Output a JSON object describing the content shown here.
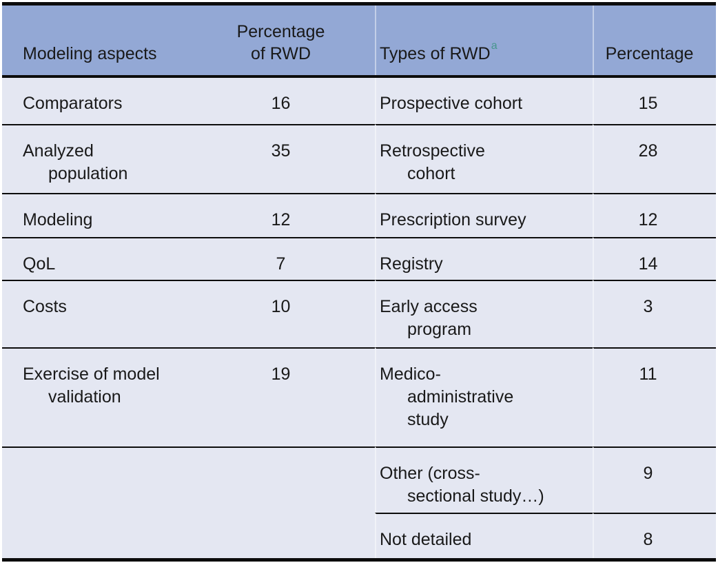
{
  "table": {
    "kind": "data-table",
    "header": {
      "col1": "Modeling aspects",
      "col2": "Percentage\nof RWD",
      "col3": "Types of RWD",
      "col3_sup": "a",
      "col4": "Percentage"
    },
    "rows": [
      {
        "aspect": "Comparators",
        "aspect_pct": "16",
        "rwd_type": "Prospective cohort",
        "type_pct": "15"
      },
      {
        "aspect": "Analyzed\npopulation",
        "aspect_pct": "35",
        "rwd_type": "Retrospective\ncohort",
        "type_pct": "28"
      },
      {
        "aspect": "Modeling",
        "aspect_pct": "12",
        "rwd_type": "Prescription survey",
        "type_pct": "12"
      },
      {
        "aspect": "QoL",
        "aspect_pct": "7",
        "rwd_type": "Registry",
        "type_pct": "14"
      },
      {
        "aspect": "Costs",
        "aspect_pct": "10",
        "rwd_type": "Early access\nprogram",
        "type_pct": "3"
      },
      {
        "aspect": "Exercise of model\nvalidation",
        "aspect_pct": "19",
        "rwd_type": "Medico-\nadministrative\nstudy",
        "type_pct": "11"
      },
      {
        "aspect": "",
        "aspect_pct": "",
        "rwd_type": "Other (cross-\nsectional study…)",
        "type_pct": "9"
      },
      {
        "aspect": "",
        "aspect_pct": "",
        "rwd_type": "Not detailed",
        "type_pct": "8"
      }
    ],
    "colors": {
      "header_bg": "#93a8d5",
      "body_bg": "#e4e7f2",
      "rule_black": "#0c0c0c",
      "superscript_teal": "#46968c",
      "column_divider": "rgba(255,255,255,0.45)",
      "text": "#191919"
    }
  },
  "chart_data": {
    "type": "table",
    "title": "",
    "columns": [
      "Modeling aspects",
      "Percentage of RWD",
      "Types of RWD",
      "Percentage"
    ],
    "modeling_aspects": {
      "categories": [
        "Comparators",
        "Analyzed population",
        "Modeling",
        "QoL",
        "Costs",
        "Exercise of model validation"
      ],
      "values": [
        16,
        35,
        12,
        7,
        10,
        19
      ]
    },
    "types_of_rwd": {
      "categories": [
        "Prospective cohort",
        "Retrospective cohort",
        "Prescription survey",
        "Registry",
        "Early access program",
        "Medico-administrative study",
        "Other (cross-sectional study…)",
        "Not detailed"
      ],
      "values": [
        15,
        28,
        12,
        14,
        3,
        11,
        9,
        8
      ]
    }
  }
}
